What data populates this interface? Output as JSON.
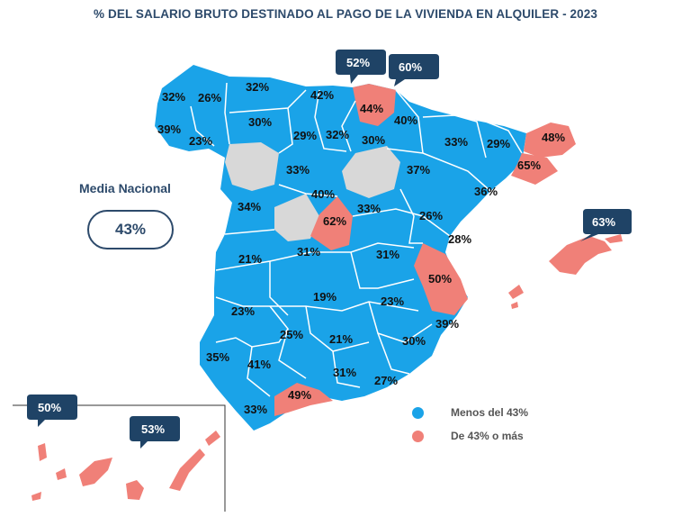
{
  "title": "% DEL SALARIO BRUTO DESTINADO AL PAGO DE LA VIVIENDA EN ALQUILER - 2023",
  "media": {
    "label": "Media Nacional",
    "value": "43%"
  },
  "colors": {
    "blue": "#1aa3e8",
    "red": "#f08078",
    "gray": "#d8d8d8",
    "navy": "#1f4366"
  },
  "legend": [
    {
      "label": "Menos del 43%",
      "color": "#1aa3e8"
    },
    {
      "label": "De 43% o más",
      "color": "#f08078"
    }
  ],
  "provinces": {
    "a_coruna": "32%",
    "lugo": "26%",
    "asturias": "32%",
    "cantabria": "42%",
    "pontevedra": "39%",
    "ourense": "23%",
    "leon": "30%",
    "palencia": "29%",
    "burgos": "32%",
    "alava": "44%",
    "navarra": "40%",
    "la_rioja": "30%",
    "huesca": "33%",
    "lleida": "29%",
    "girona": "48%",
    "barcelona": "65%",
    "valladolid": "33%",
    "zaragoza": "37%",
    "tarragona": "36%",
    "segovia": "40%",
    "salamanca": "34%",
    "madrid": "62%",
    "guadalajara": "33%",
    "teruel": "26%",
    "castellon": "28%",
    "caceres": "21%",
    "toledo": "31%",
    "cuenca": "31%",
    "valencia": "50%",
    "badajoz": "23%",
    "ciudad_real": "19%",
    "albacete": "23%",
    "alicante": "39%",
    "cordoba": "25%",
    "jaen": "21%",
    "murcia": "30%",
    "huelva": "35%",
    "sevilla": "41%",
    "granada": "31%",
    "almeria": "27%",
    "malaga": "49%",
    "cadiz": "33%"
  },
  "callouts": {
    "bizkaia": "52%",
    "gipuzkoa": "60%",
    "baleares": "63%",
    "canarias_west": "50%",
    "canarias_east": "53%"
  }
}
